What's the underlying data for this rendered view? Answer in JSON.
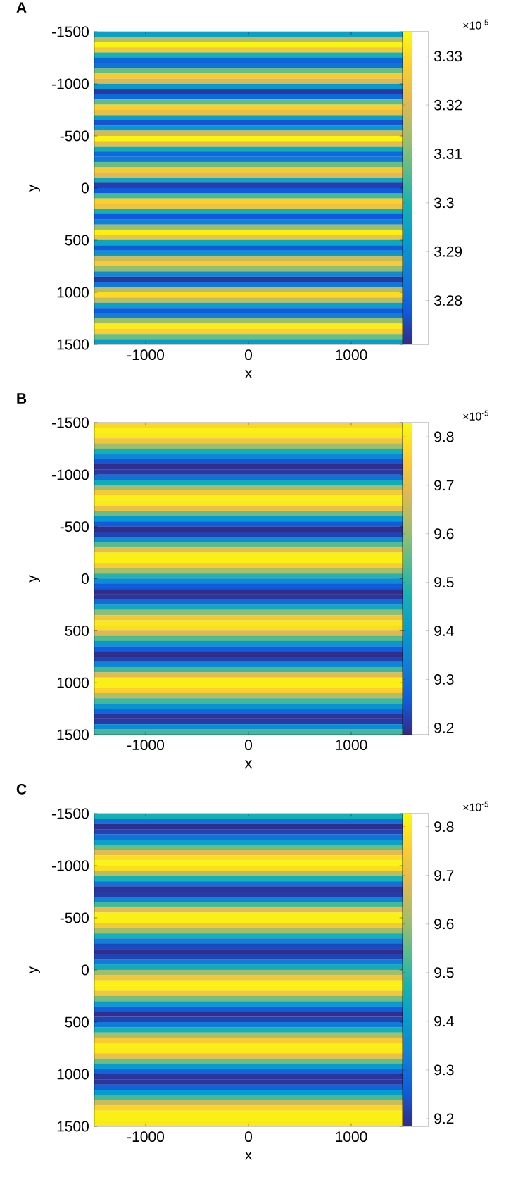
{
  "chart_data": [
    {
      "type": "heatmap",
      "title": "A",
      "xlabel": "x",
      "ylabel": "y",
      "xlim": [
        -1500,
        1500
      ],
      "ylim": [
        1500,
        -1500
      ],
      "xticks": [
        -1000,
        0,
        1000
      ],
      "yticks": [
        -1500,
        -1000,
        -500,
        0,
        500,
        1000,
        1500
      ],
      "clim": [
        3.271,
        3.335
      ],
      "cticks": [
        3.28,
        3.29,
        3.3,
        3.31,
        3.32,
        3.33
      ],
      "annotations": [
        "×10$^{-5}$"
      ],
      "cells": [
        [
          3.294
        ],
        [
          3.316
        ],
        [
          3.334
        ],
        [
          3.326
        ],
        [
          3.3
        ],
        [
          3.28
        ],
        [
          3.283
        ],
        [
          3.308
        ],
        [
          3.327
        ],
        [
          3.32
        ],
        [
          3.292
        ],
        [
          3.273
        ],
        [
          3.281
        ],
        [
          3.307
        ],
        [
          3.328
        ],
        [
          3.323
        ],
        [
          3.294
        ],
        [
          3.277
        ],
        [
          3.291
        ],
        [
          3.319
        ],
        [
          3.334
        ],
        [
          3.322
        ],
        [
          3.298
        ],
        [
          3.281
        ],
        [
          3.284
        ],
        [
          3.308
        ],
        [
          3.327
        ],
        [
          3.321
        ],
        [
          3.296
        ],
        [
          3.274
        ],
        [
          3.278
        ],
        [
          3.304
        ],
        [
          3.328
        ],
        [
          3.324
        ],
        [
          3.299
        ],
        [
          3.278
        ],
        [
          3.286
        ],
        [
          3.313
        ],
        [
          3.333
        ],
        [
          3.324
        ],
        [
          3.296
        ],
        [
          3.278
        ],
        [
          3.291
        ],
        [
          3.318
        ],
        [
          3.327
        ],
        [
          3.312
        ],
        [
          3.288
        ],
        [
          3.273
        ],
        [
          3.284
        ],
        [
          3.316
        ],
        [
          3.33
        ],
        [
          3.317
        ],
        [
          3.294
        ],
        [
          3.278
        ],
        [
          3.286
        ],
        [
          3.313
        ],
        [
          3.333
        ],
        [
          3.328
        ],
        [
          3.308
        ],
        [
          3.293
        ]
      ]
    },
    {
      "type": "heatmap",
      "title": "B",
      "xlabel": "x",
      "ylabel": "y",
      "xlim": [
        -1500,
        1500
      ],
      "ylim": [
        1500,
        -1500
      ],
      "xticks": [
        -1000,
        0,
        1000
      ],
      "yticks": [
        -1500,
        -1000,
        -500,
        0,
        500,
        1000,
        1500
      ],
      "clim": [
        9.186,
        9.829
      ],
      "cticks": [
        9.2,
        9.3,
        9.4,
        9.5,
        9.6,
        9.7,
        9.8
      ],
      "annotations": [
        "×10$^{-5}$"
      ],
      "cells": [
        [
          9.77
        ],
        [
          9.81
        ],
        [
          9.8
        ],
        [
          9.73
        ],
        [
          9.61
        ],
        [
          9.47
        ],
        [
          9.35
        ],
        [
          9.25
        ],
        [
          9.19
        ],
        [
          9.21
        ],
        [
          9.3
        ],
        [
          9.45
        ],
        [
          9.61
        ],
        [
          9.74
        ],
        [
          9.81
        ],
        [
          9.8
        ],
        [
          9.71
        ],
        [
          9.56
        ],
        [
          9.39
        ],
        [
          9.26
        ],
        [
          9.19
        ],
        [
          9.22
        ],
        [
          9.36
        ],
        [
          9.54
        ],
        [
          9.7
        ],
        [
          9.81
        ],
        [
          9.81
        ],
        [
          9.75
        ],
        [
          9.62
        ],
        [
          9.49
        ],
        [
          9.36
        ],
        [
          9.26
        ],
        [
          9.19
        ],
        [
          9.2
        ],
        [
          9.29
        ],
        [
          9.44
        ],
        [
          9.59
        ],
        [
          9.73
        ],
        [
          9.8
        ],
        [
          9.78
        ],
        [
          9.68
        ],
        [
          9.54
        ],
        [
          9.39
        ],
        [
          9.26
        ],
        [
          9.19
        ],
        [
          9.22
        ],
        [
          9.35
        ],
        [
          9.52
        ],
        [
          9.69
        ],
        [
          9.81
        ],
        [
          9.81
        ],
        [
          9.76
        ],
        [
          9.64
        ],
        [
          9.52
        ],
        [
          9.38
        ],
        [
          9.28
        ],
        [
          9.2
        ],
        [
          9.21
        ],
        [
          9.36
        ],
        [
          9.52
        ]
      ]
    },
    {
      "type": "heatmap",
      "title": "C",
      "xlabel": "x",
      "ylabel": "y",
      "xlim": [
        -1500,
        1500
      ],
      "ylim": [
        1500,
        -1500
      ],
      "xticks": [
        -1000,
        0,
        1000
      ],
      "yticks": [
        -1500,
        -1000,
        -500,
        0,
        500,
        1000,
        1500
      ],
      "clim": [
        9.184,
        9.827
      ],
      "cticks": [
        9.2,
        9.3,
        9.4,
        9.5,
        9.6,
        9.7,
        9.8
      ],
      "annotations": [
        "×10$^{-5}$"
      ],
      "cells": [
        [
          9.47
        ],
        [
          9.3
        ],
        [
          9.19
        ],
        [
          9.22
        ],
        [
          9.3
        ],
        [
          9.42
        ],
        [
          9.56
        ],
        [
          9.69
        ],
        [
          9.78
        ],
        [
          9.82
        ],
        [
          9.78
        ],
        [
          9.64
        ],
        [
          9.47
        ],
        [
          9.3
        ],
        [
          9.2
        ],
        [
          9.21
        ],
        [
          9.34
        ],
        [
          9.52
        ],
        [
          9.69
        ],
        [
          9.81
        ],
        [
          9.81
        ],
        [
          9.74
        ],
        [
          9.61
        ],
        [
          9.47
        ],
        [
          9.33
        ],
        [
          9.23
        ],
        [
          9.19
        ],
        [
          9.22
        ],
        [
          9.32
        ],
        [
          9.45
        ],
        [
          9.61
        ],
        [
          9.73
        ],
        [
          9.81
        ],
        [
          9.81
        ],
        [
          9.73
        ],
        [
          9.57
        ],
        [
          9.4
        ],
        [
          9.26
        ],
        [
          9.19
        ],
        [
          9.22
        ],
        [
          9.32
        ],
        [
          9.47
        ],
        [
          9.62
        ],
        [
          9.75
        ],
        [
          9.81
        ],
        [
          9.8
        ],
        [
          9.71
        ],
        [
          9.56
        ],
        [
          9.4
        ],
        [
          9.27
        ],
        [
          9.2
        ],
        [
          9.2
        ],
        [
          9.27
        ],
        [
          9.4
        ],
        [
          9.52
        ],
        [
          9.66
        ],
        [
          9.76
        ],
        [
          9.81
        ],
        [
          9.81
        ],
        [
          9.8
        ]
      ]
    }
  ]
}
